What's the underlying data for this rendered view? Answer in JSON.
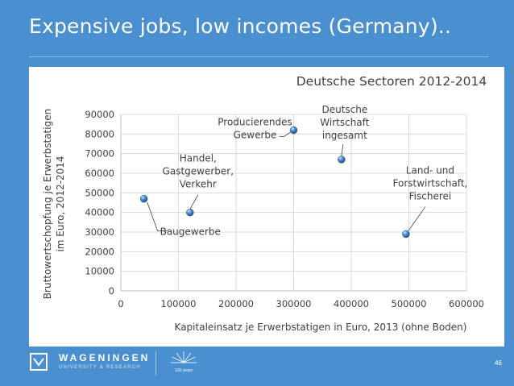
{
  "slide": {
    "title": "Expensive jobs, low incomes (Germany)..",
    "page_number": "46"
  },
  "footer": {
    "logo_name": "WAGENINGEN",
    "logo_subtitle": "UNIVERSITY & RESEARCH",
    "centennial_label": "100 years"
  },
  "colors": {
    "slide_background": "#4a90d0",
    "marker": "#3f7fc0",
    "gridline": "#d9d9d9"
  },
  "chart_data": {
    "type": "scatter",
    "title": "Deutsche Sectoren 2012-2014",
    "xlabel": "Kapitaleinsatz je Erwerbstatigen in Euro, 2013 (ohne Boden)",
    "ylabel_lines": [
      "Bruttowertschopfung je Erwerbstatigen",
      "im Euro, 2012-2014"
    ],
    "xlim": [
      0,
      600000
    ],
    "ylim": [
      0,
      90000
    ],
    "x_ticks": [
      "0",
      "100000",
      "200000",
      "300000",
      "400000",
      "500000",
      "600000"
    ],
    "y_ticks": [
      "0",
      "10000",
      "20000",
      "30000",
      "40000",
      "50000",
      "60000",
      "70000",
      "80000",
      "90000"
    ],
    "grid": true,
    "legend": "none",
    "points": [
      {
        "x": 40000,
        "y": 47000,
        "label": [
          "Baugewerbe"
        ]
      },
      {
        "x": 120000,
        "y": 40000,
        "label": [
          "Handel,",
          "Gastgewerber,",
          "Verkehr"
        ]
      },
      {
        "x": 300000,
        "y": 82000,
        "label": [
          "Producierendes",
          "Gewerbe"
        ]
      },
      {
        "x": 383000,
        "y": 67000,
        "label": [
          "Deutsche",
          "Wirtschaft",
          "ingesamt"
        ]
      },
      {
        "x": 495000,
        "y": 29000,
        "label": [
          "Land- und",
          "Forstwirtschaft,",
          "Fischerei"
        ]
      }
    ]
  }
}
